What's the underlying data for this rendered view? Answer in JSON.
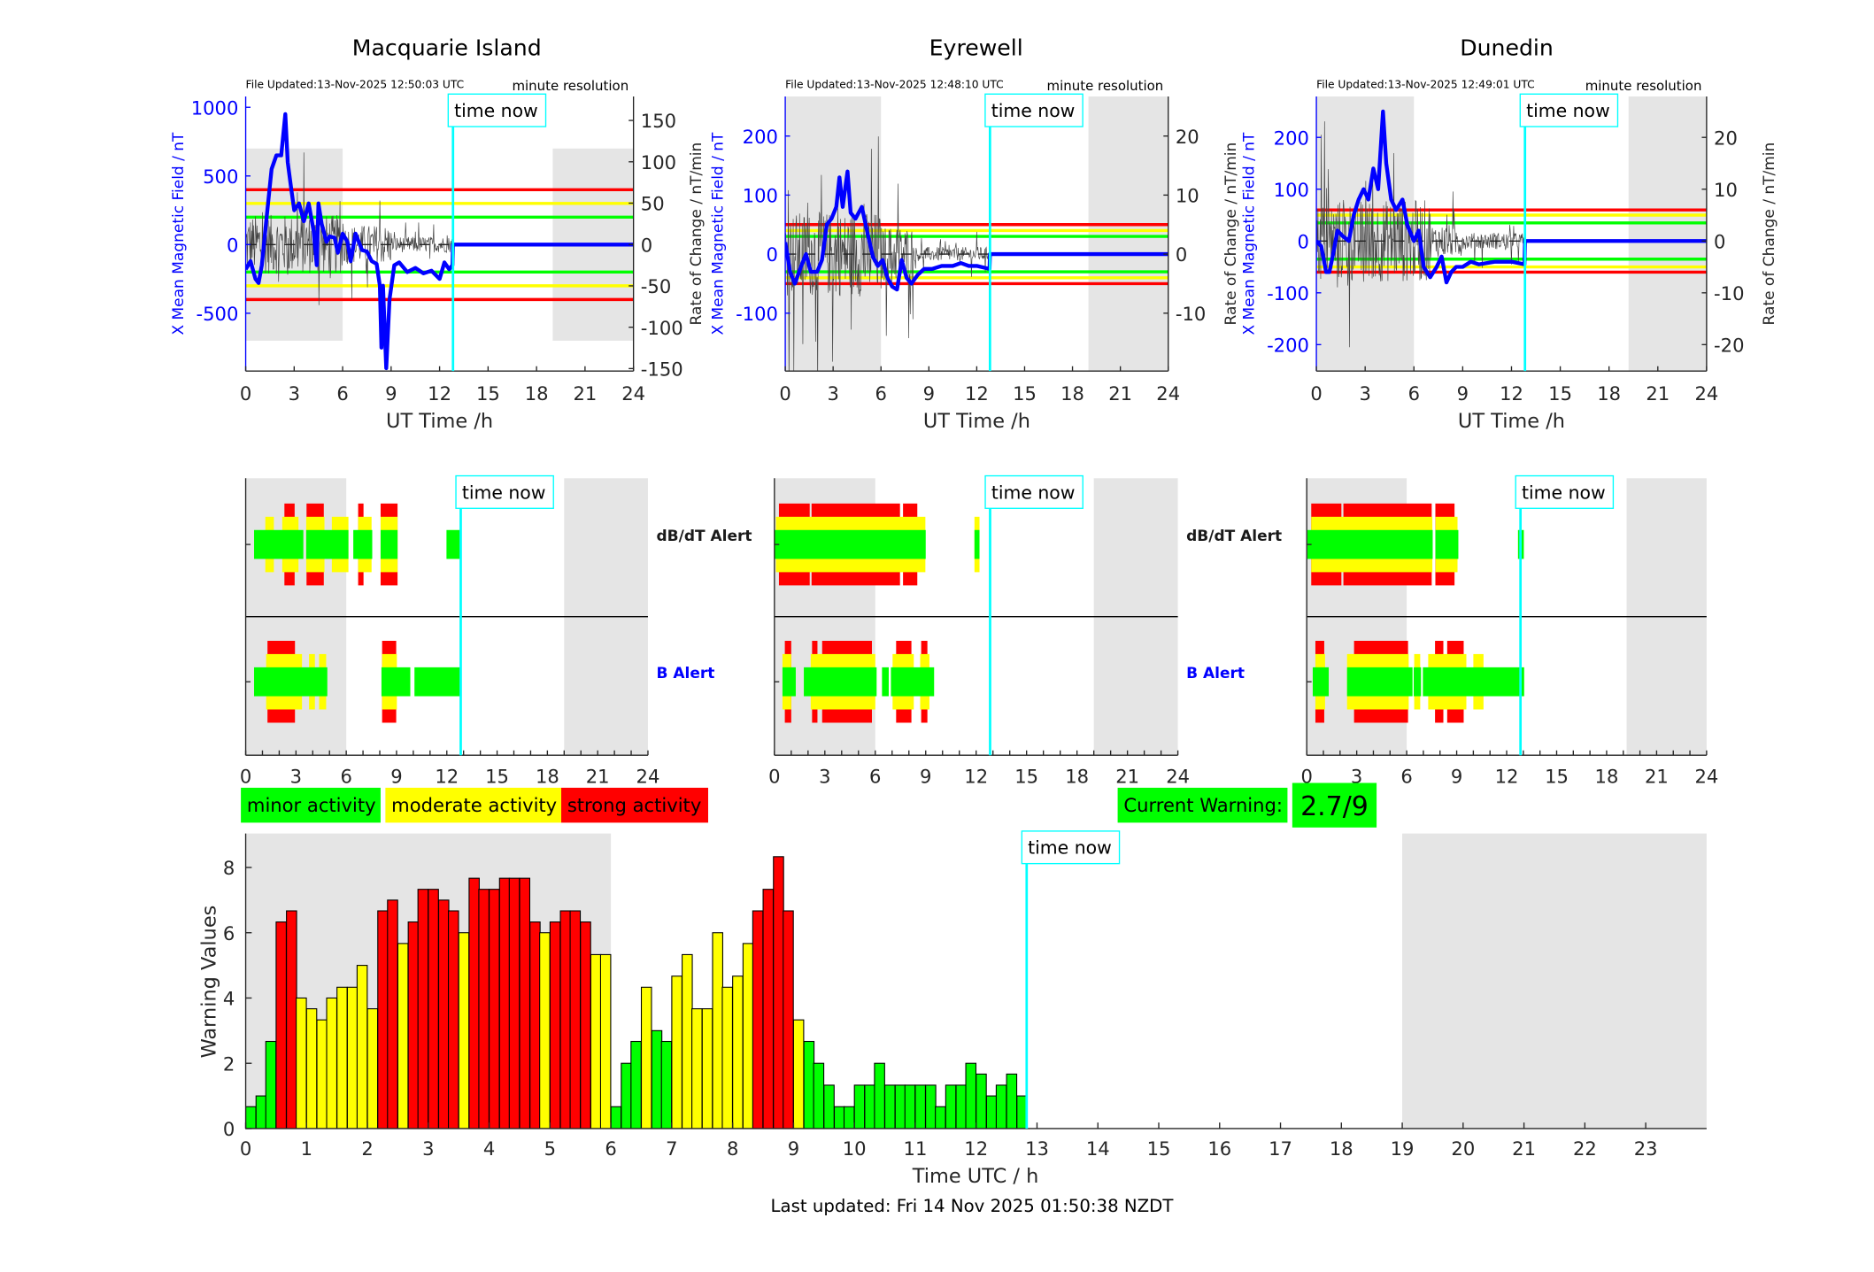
{
  "time_now_label": "time now",
  "time_now_h": 12.83,
  "colors": {
    "minor": "#00ff00",
    "moderate": "#ffff00",
    "strong": "#ff0000",
    "field": "#0000ff",
    "time_now": "#00ffff",
    "night": "#e5e5e5"
  },
  "alert_labels": {
    "dbdt": "dB/dT Alert",
    "b": "B Alert"
  },
  "stations": [
    {
      "name": "Macquarie Island",
      "file_updated": "File Updated:13-Nov-2025 12:50:03 UTC",
      "resolution": "minute resolution",
      "left_label": "X Mean Magnetic Field / nT",
      "right_label": "Rate of Change / nT/min",
      "xlabel": "UT Time /h",
      "x_ticks": [
        0,
        3,
        6,
        9,
        12,
        15,
        18,
        21,
        24
      ],
      "left_ylim": [
        -921,
        1079
      ],
      "left_ticks": [
        -500,
        0,
        500,
        1000
      ],
      "right_ylim": [
        -153,
        179
      ],
      "right_ticks": [
        -150,
        -100,
        -50,
        0,
        50,
        100,
        150
      ],
      "thresholds": {
        "strong": 400,
        "moderate": 300,
        "minor": 200
      },
      "night_shading": [
        [
          0,
          6
        ],
        [
          19,
          24
        ]
      ],
      "shade_ylim": [
        -700,
        700
      ],
      "x_field": [
        [
          0,
          -180
        ],
        [
          0.3,
          -120
        ],
        [
          0.6,
          -250
        ],
        [
          0.8,
          -280
        ],
        [
          1.0,
          -150
        ],
        [
          1.3,
          200
        ],
        [
          1.6,
          550
        ],
        [
          1.9,
          650
        ],
        [
          2.2,
          650
        ],
        [
          2.45,
          950
        ],
        [
          2.6,
          600
        ],
        [
          2.8,
          420
        ],
        [
          3.0,
          250
        ],
        [
          3.3,
          300
        ],
        [
          3.6,
          170
        ],
        [
          3.9,
          300
        ],
        [
          4.2,
          100
        ],
        [
          4.4,
          -150
        ],
        [
          4.5,
          300
        ],
        [
          4.7,
          150
        ],
        [
          5.0,
          20
        ],
        [
          5.2,
          60
        ],
        [
          5.5,
          50
        ],
        [
          5.7,
          -60
        ],
        [
          6.0,
          80
        ],
        [
          6.3,
          20
        ],
        [
          6.5,
          -120
        ],
        [
          6.8,
          80
        ],
        [
          7.2,
          -40
        ],
        [
          7.5,
          -50
        ],
        [
          7.8,
          -120
        ],
        [
          8.1,
          -140
        ],
        [
          8.3,
          -300
        ],
        [
          8.4,
          -750
        ],
        [
          8.5,
          -300
        ],
        [
          8.7,
          -900
        ],
        [
          8.9,
          -400
        ],
        [
          9.2,
          -150
        ],
        [
          9.5,
          -130
        ],
        [
          10,
          -200
        ],
        [
          10.5,
          -170
        ],
        [
          11,
          -210
        ],
        [
          11.5,
          -190
        ],
        [
          12,
          -250
        ],
        [
          12.3,
          -130
        ],
        [
          12.6,
          -180
        ],
        [
          12.8,
          -150
        ],
        [
          12.83,
          0
        ],
        [
          24,
          0
        ]
      ],
      "rate_envelope": [
        [
          0,
          6,
          45
        ],
        [
          6,
          9,
          30
        ],
        [
          9,
          12.83,
          12
        ]
      ],
      "alerts": {
        "dbdt": {
          "strong": [
            [
              2.31,
              2.92
            ],
            [
              3.63,
              4.66
            ],
            [
              6.71,
              7.03
            ],
            [
              8.05,
              9.06
            ]
          ],
          "moderate": [
            [
              1.17,
              1.68
            ],
            [
              2.18,
              3.15
            ],
            [
              3.61,
              4.7
            ],
            [
              5.14,
              6.13
            ],
            [
              6.71,
              7.51
            ],
            [
              8.05,
              9.06
            ]
          ],
          "minor": [
            [
              0.5,
              3.44
            ],
            [
              3.61,
              6.13
            ],
            [
              6.42,
              7.55
            ],
            [
              8.05,
              9.06
            ],
            [
              11.98,
              12.78
            ]
          ]
        },
        "b": {
          "strong": [
            [
              1.3,
              2.94
            ],
            [
              8.14,
              8.98
            ]
          ],
          "moderate": [
            [
              1.22,
              3.36
            ],
            [
              3.78,
              4.13
            ],
            [
              4.38,
              4.8
            ],
            [
              8.14,
              9.02
            ]
          ],
          "minor": [
            [
              0.5,
              4.87
            ],
            [
              8.1,
              9.82
            ],
            [
              10.07,
              12.78
            ]
          ]
        }
      }
    },
    {
      "name": "Eyrewell",
      "file_updated": "File Updated:13-Nov-2025 12:48:10 UTC",
      "resolution": "minute resolution",
      "left_label": "X Mean Magnetic Field / nT",
      "right_label": "Rate of Change / nT/min",
      "xlabel": "UT Time /h",
      "x_ticks": [
        0,
        3,
        6,
        9,
        12,
        15,
        18,
        21,
        24
      ],
      "left_ylim": [
        -198,
        267
      ],
      "left_ticks": [
        -100,
        0,
        100,
        200
      ],
      "right_ylim": [
        -19.8,
        26.7
      ],
      "right_ticks": [
        -10,
        0,
        10,
        20
      ],
      "thresholds": {
        "strong": 50,
        "moderate": 40,
        "minor": 30
      },
      "night_shading": [
        [
          0,
          6
        ],
        [
          19,
          24
        ]
      ],
      "x_field": [
        [
          0,
          20
        ],
        [
          0.3,
          -30
        ],
        [
          0.6,
          -50
        ],
        [
          1.0,
          -20
        ],
        [
          1.3,
          0
        ],
        [
          1.6,
          -30
        ],
        [
          2.0,
          -30
        ],
        [
          2.3,
          -10
        ],
        [
          2.6,
          50
        ],
        [
          2.9,
          60
        ],
        [
          3.2,
          80
        ],
        [
          3.4,
          130
        ],
        [
          3.6,
          80
        ],
        [
          3.9,
          140
        ],
        [
          4.1,
          70
        ],
        [
          4.4,
          60
        ],
        [
          4.8,
          80
        ],
        [
          5.2,
          30
        ],
        [
          5.5,
          -5
        ],
        [
          5.8,
          -20
        ],
        [
          6.1,
          -10
        ],
        [
          6.4,
          -40
        ],
        [
          6.7,
          -55
        ],
        [
          7.0,
          -60
        ],
        [
          7.3,
          -10
        ],
        [
          7.6,
          -40
        ],
        [
          7.9,
          -50
        ],
        [
          8.3,
          -35
        ],
        [
          8.7,
          -25
        ],
        [
          9.2,
          -25
        ],
        [
          9.8,
          -20
        ],
        [
          10.5,
          -20
        ],
        [
          11,
          -15
        ],
        [
          11.5,
          -20
        ],
        [
          12,
          -20
        ],
        [
          12.8,
          -25
        ],
        [
          12.83,
          0
        ],
        [
          24,
          0
        ]
      ],
      "rate_envelope": [
        [
          0,
          6,
          9
        ],
        [
          6,
          8,
          6
        ],
        [
          8,
          12.83,
          1.5
        ]
      ],
      "alerts": {
        "dbdt": {
          "strong": [
            [
              0.27,
              2.1
            ],
            [
              2.21,
              7.47
            ],
            [
              7.65,
              8.5
            ]
          ],
          "moderate": [
            [
              0.09,
              8.98
            ],
            [
              11.9,
              12.2
            ]
          ],
          "minor": [
            [
              0,
              9.0
            ],
            [
              11.9,
              12.2
            ]
          ]
        },
        "b": {
          "strong": [
            [
              0.62,
              1.0
            ],
            [
              2.24,
              2.56
            ],
            [
              2.84,
              5.8
            ],
            [
              7.24,
              8.15
            ],
            [
              8.73,
              9.1
            ]
          ],
          "moderate": [
            [
              0.48,
              1.0
            ],
            [
              2.16,
              6.0
            ],
            [
              7.03,
              8.29
            ],
            [
              8.67,
              9.22
            ]
          ],
          "minor": [
            [
              0.48,
              1.27
            ],
            [
              1.75,
              6.08
            ],
            [
              6.4,
              6.8
            ],
            [
              6.93,
              9.5
            ]
          ]
        }
      }
    },
    {
      "name": "Dunedin",
      "file_updated": "File Updated:13-Nov-2025 12:49:01 UTC",
      "resolution": "minute resolution",
      "left_label": "X Mean Magnetic Field / nT",
      "right_label": "Rate of Change / nT/min",
      "xlabel": "UT Time /h",
      "x_ticks": [
        0,
        3,
        6,
        9,
        12,
        15,
        18,
        21,
        24
      ],
      "left_ylim": [
        -251,
        279
      ],
      "left_ticks": [
        -200,
        -100,
        0,
        100,
        200
      ],
      "right_ylim": [
        -25.1,
        27.9
      ],
      "right_ticks": [
        -20,
        -10,
        0,
        10,
        20
      ],
      "thresholds": {
        "strong": 60,
        "moderate": 50,
        "minor": 35
      },
      "night_shading": [
        [
          0,
          6
        ],
        [
          19.2,
          24
        ]
      ],
      "x_field": [
        [
          0,
          0
        ],
        [
          0.3,
          -10
        ],
        [
          0.6,
          -60
        ],
        [
          0.8,
          -60
        ],
        [
          1.0,
          -30
        ],
        [
          1.3,
          20
        ],
        [
          1.6,
          10
        ],
        [
          2.0,
          0
        ],
        [
          2.3,
          50
        ],
        [
          2.6,
          80
        ],
        [
          2.9,
          100
        ],
        [
          3.2,
          80
        ],
        [
          3.5,
          140
        ],
        [
          3.8,
          100
        ],
        [
          4.1,
          250
        ],
        [
          4.3,
          150
        ],
        [
          4.6,
          80
        ],
        [
          4.9,
          60
        ],
        [
          5.3,
          80
        ],
        [
          5.6,
          30
        ],
        [
          6.0,
          0
        ],
        [
          6.3,
          20
        ],
        [
          6.6,
          -50
        ],
        [
          7.0,
          -70
        ],
        [
          7.4,
          -50
        ],
        [
          7.7,
          -30
        ],
        [
          8.0,
          -80
        ],
        [
          8.3,
          -60
        ],
        [
          8.6,
          -50
        ],
        [
          9.0,
          -50
        ],
        [
          9.5,
          -40
        ],
        [
          10,
          -45
        ],
        [
          11,
          -40
        ],
        [
          12,
          -40
        ],
        [
          12.8,
          -45
        ],
        [
          12.83,
          0
        ],
        [
          24,
          0
        ]
      ],
      "rate_envelope": [
        [
          0,
          7,
          10
        ],
        [
          7,
          9,
          4
        ],
        [
          9,
          12.83,
          2
        ]
      ],
      "alerts": {
        "dbdt": {
          "strong": [
            [
              0.27,
              2.08
            ],
            [
              2.2,
              7.5
            ],
            [
              7.72,
              8.87
            ]
          ],
          "moderate": [
            [
              0.27,
              7.54
            ],
            [
              7.73,
              9.05
            ]
          ],
          "minor": [
            [
              0.04,
              7.56
            ],
            [
              7.72,
              9.1
            ],
            [
              12.68,
              13.03
            ]
          ]
        },
        "b": {
          "strong": [
            [
              0.52,
              1.05
            ],
            [
              2.84,
              6.08
            ],
            [
              7.7,
              8.2
            ],
            [
              8.43,
              9.42
            ]
          ],
          "moderate": [
            [
              0.52,
              1.1
            ],
            [
              2.42,
              6.12
            ],
            [
              6.45,
              6.81
            ],
            [
              7.29,
              9.58
            ],
            [
              10.0,
              10.61
            ]
          ],
          "minor": [
            [
              0.36,
              1.32
            ],
            [
              2.42,
              6.35
            ],
            [
              6.42,
              6.86
            ],
            [
              6.97,
              13.05
            ]
          ]
        }
      }
    }
  ],
  "legend": [
    {
      "label": "minor activity",
      "color": "#00ff00"
    },
    {
      "label": "moderate activity",
      "color": "#ffff00"
    },
    {
      "label": "strong activity",
      "color": "#ff0000"
    }
  ],
  "current_warning": {
    "label": "Current Warning:",
    "value": "2.7/9",
    "color": "#00ff00"
  },
  "last_updated": "Last updated: Fri 14 Nov 2025 01:50:38 NZDT",
  "chart_data": {
    "type": "bar",
    "xlabel": "Time UTC / h",
    "ylabel": "Warning Values",
    "xlim": [
      0,
      24
    ],
    "ylim": [
      0,
      9
    ],
    "x_ticks": [
      0,
      1,
      2,
      3,
      4,
      5,
      6,
      7,
      8,
      9,
      10,
      11,
      12,
      13,
      14,
      15,
      16,
      17,
      18,
      19,
      20,
      21,
      22,
      23
    ],
    "y_ticks": [
      0,
      2,
      4,
      6,
      8
    ],
    "night_shading": [
      [
        0,
        6
      ],
      [
        19,
        24
      ]
    ],
    "bin_width_h": 0.1667,
    "color_thresholds": [
      3,
      6
    ],
    "x": [
      0,
      0.17,
      0.33,
      0.5,
      0.67,
      0.83,
      1,
      1.17,
      1.33,
      1.5,
      1.67,
      1.83,
      2,
      2.17,
      2.33,
      2.5,
      2.67,
      2.83,
      3,
      3.17,
      3.33,
      3.5,
      3.67,
      3.83,
      4,
      4.17,
      4.33,
      4.5,
      4.67,
      4.83,
      5,
      5.17,
      5.33,
      5.5,
      5.67,
      5.83,
      6,
      6.17,
      6.33,
      6.5,
      6.67,
      6.83,
      7,
      7.17,
      7.33,
      7.5,
      7.67,
      7.83,
      8,
      8.17,
      8.33,
      8.5,
      8.67,
      8.83,
      9,
      9.17,
      9.33,
      9.5,
      9.67,
      9.83,
      10,
      10.17,
      10.33,
      10.5,
      10.67,
      10.83,
      11,
      11.17,
      11.33,
      11.5,
      11.67,
      11.83,
      12,
      12.17,
      12.33,
      12.5,
      12.67
    ],
    "values": [
      0.67,
      1,
      2.67,
      6.33,
      6.67,
      4,
      3.67,
      3.33,
      4,
      4.33,
      4.33,
      5,
      3.67,
      6.67,
      7,
      5.67,
      6.33,
      7.33,
      7.33,
      7,
      6.67,
      6,
      7.67,
      7.33,
      7.33,
      7.67,
      7.67,
      7.67,
      6.33,
      6,
      6.33,
      6.67,
      6.67,
      6.33,
      5.33,
      5.33,
      0.67,
      2,
      2.67,
      4.33,
      3,
      2.67,
      4.67,
      5.33,
      3.67,
      3.67,
      6,
      4.33,
      4.67,
      5.67,
      6.67,
      7.33,
      8.33,
      6.67,
      3.33,
      2.67,
      2,
      1.33,
      0.67,
      0.67,
      1.33,
      1.33,
      2,
      1.33,
      1.33,
      1.33,
      1.33,
      1.33,
      0.67,
      1.33,
      1.33,
      2,
      1.67,
      1,
      1.33,
      1.67,
      1
    ]
  }
}
